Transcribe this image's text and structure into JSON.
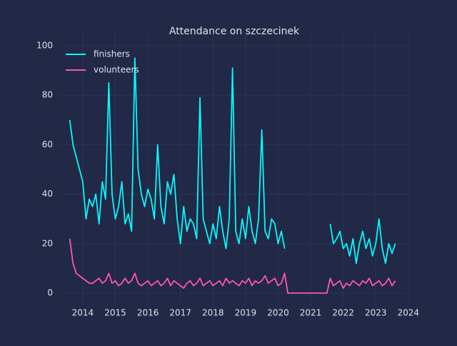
{
  "chart_data": {
    "type": "line",
    "title": "Attendance on szczecinek",
    "x": [
      2013.6,
      2013.7,
      2013.8,
      2013.9,
      2014.0,
      2014.1,
      2014.2,
      2014.3,
      2014.4,
      2014.5,
      2014.6,
      2014.7,
      2014.8,
      2014.9,
      2015.0,
      2015.1,
      2015.2,
      2015.3,
      2015.4,
      2015.5,
      2015.6,
      2015.7,
      2015.8,
      2015.9,
      2016.0,
      2016.1,
      2016.2,
      2016.3,
      2016.4,
      2016.5,
      2016.6,
      2016.7,
      2016.8,
      2016.9,
      2017.0,
      2017.1,
      2017.2,
      2017.3,
      2017.4,
      2017.5,
      2017.6,
      2017.7,
      2017.8,
      2017.9,
      2018.0,
      2018.1,
      2018.2,
      2018.3,
      2018.4,
      2018.5,
      2018.6,
      2018.7,
      2018.8,
      2018.9,
      2019.0,
      2019.1,
      2019.2,
      2019.3,
      2019.4,
      2019.5,
      2019.6,
      2019.7,
      2019.8,
      2019.9,
      2020.0,
      2020.1,
      2020.2,
      2020.3,
      2021.5,
      2021.6,
      2021.7,
      2021.8,
      2021.9,
      2022.0,
      2022.1,
      2022.2,
      2022.3,
      2022.4,
      2022.5,
      2022.6,
      2022.7,
      2022.8,
      2022.9,
      2023.0,
      2023.1,
      2023.2,
      2023.3,
      2023.4,
      2023.5,
      2023.6
    ],
    "series": [
      {
        "name": "finishers",
        "color": "#08f7fe",
        "values": [
          70,
          60,
          55,
          50,
          45,
          30,
          38,
          35,
          40,
          28,
          45,
          38,
          85,
          40,
          30,
          35,
          45,
          28,
          32,
          25,
          95,
          50,
          40,
          35,
          42,
          38,
          30,
          60,
          35,
          28,
          45,
          40,
          48,
          30,
          20,
          35,
          25,
          30,
          28,
          22,
          79,
          30,
          25,
          20,
          28,
          22,
          35,
          25,
          18,
          30,
          91,
          25,
          20,
          30,
          22,
          35,
          25,
          20,
          30,
          66,
          25,
          22,
          30,
          28,
          20,
          25,
          18,
          null,
          null,
          28,
          20,
          22,
          25,
          18,
          20,
          15,
          22,
          12,
          20,
          25,
          18,
          22,
          15,
          20,
          30,
          18,
          12,
          20,
          16,
          20
        ]
      },
      {
        "name": "volunteers",
        "color": "#fe53bb",
        "values": [
          22,
          12,
          8,
          7,
          6,
          5,
          4,
          4,
          5,
          6,
          4,
          5,
          8,
          4,
          5,
          3,
          4,
          6,
          4,
          5,
          8,
          4,
          3,
          4,
          5,
          3,
          4,
          5,
          3,
          4,
          6,
          3,
          5,
          4,
          3,
          2,
          4,
          5,
          3,
          4,
          6,
          3,
          4,
          5,
          3,
          4,
          5,
          3,
          6,
          4,
          5,
          4,
          3,
          5,
          4,
          6,
          3,
          5,
          4,
          5,
          7,
          4,
          5,
          6,
          3,
          4,
          8,
          0,
          0,
          6,
          3,
          4,
          5,
          2,
          4,
          3,
          5,
          4,
          3,
          5,
          4,
          6,
          3,
          4,
          5,
          3,
          4,
          6,
          3,
          5
        ]
      }
    ],
    "xlim": [
      2013.3,
      2024.07
    ],
    "xticks": [
      2014,
      2015,
      2016,
      2017,
      2018,
      2019,
      2020,
      2021,
      2022,
      2023,
      2024
    ],
    "ylim": [
      -5.2,
      105.5
    ],
    "yticks": [
      0,
      20,
      40,
      60,
      80,
      100
    ],
    "grid": true,
    "legend": "upper left"
  }
}
